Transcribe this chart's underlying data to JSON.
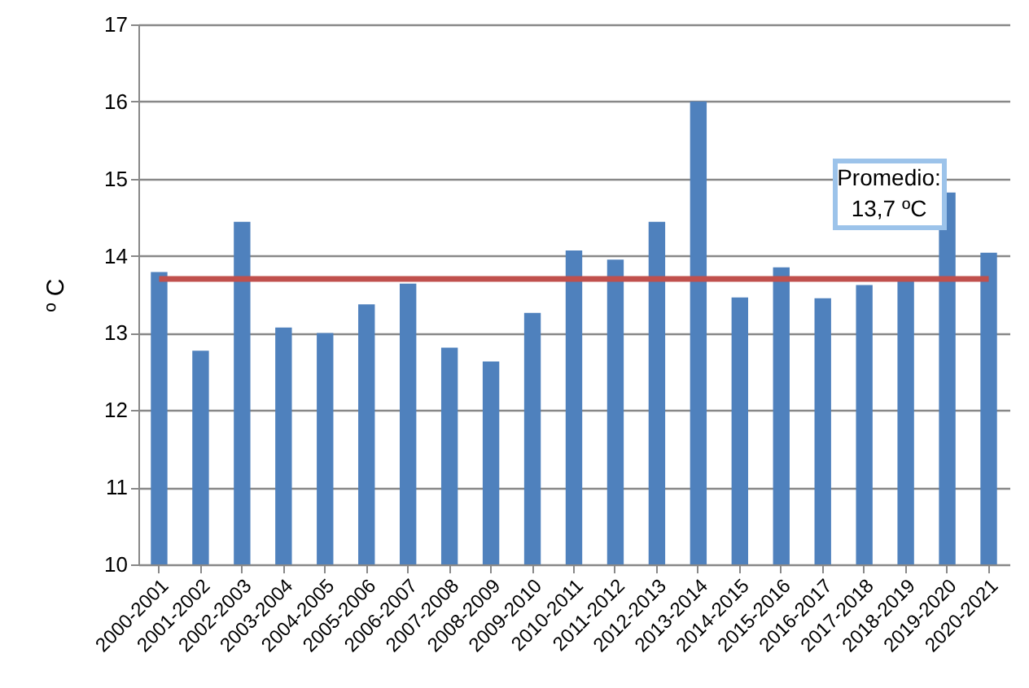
{
  "chart_data": {
    "type": "bar",
    "ylabel": "º C",
    "categories": [
      "2000-2001",
      "2001-2002",
      "2002-2003",
      "2003-2004",
      "2004-2005",
      "2005-2006",
      "2006-2007",
      "2007-2008",
      "2008-2009",
      "2009-2010",
      "2010-2011",
      "2011-2012",
      "2012-2013",
      "2013-2014",
      "2014-2015",
      "2015-2016",
      "2016-2017",
      "2017-2018",
      "2018-2019",
      "2019-2020",
      "2020-2021"
    ],
    "values": [
      13.79,
      12.77,
      14.44,
      13.07,
      13.0,
      13.37,
      13.64,
      12.81,
      12.63,
      13.26,
      14.07,
      13.95,
      14.44,
      16.0,
      13.46,
      13.85,
      13.45,
      13.62,
      13.7,
      14.82,
      14.04
    ],
    "color": "#4f81bd",
    "ylim": [
      10,
      17
    ],
    "yticks": [
      10,
      11,
      12,
      13,
      14,
      15,
      16,
      17
    ],
    "grid": "y",
    "ref_lines": [
      {
        "axis": "y",
        "value": 13.7,
        "label": "Promedio:\n13,7 ºC",
        "color": "#c0504d"
      }
    ]
  }
}
